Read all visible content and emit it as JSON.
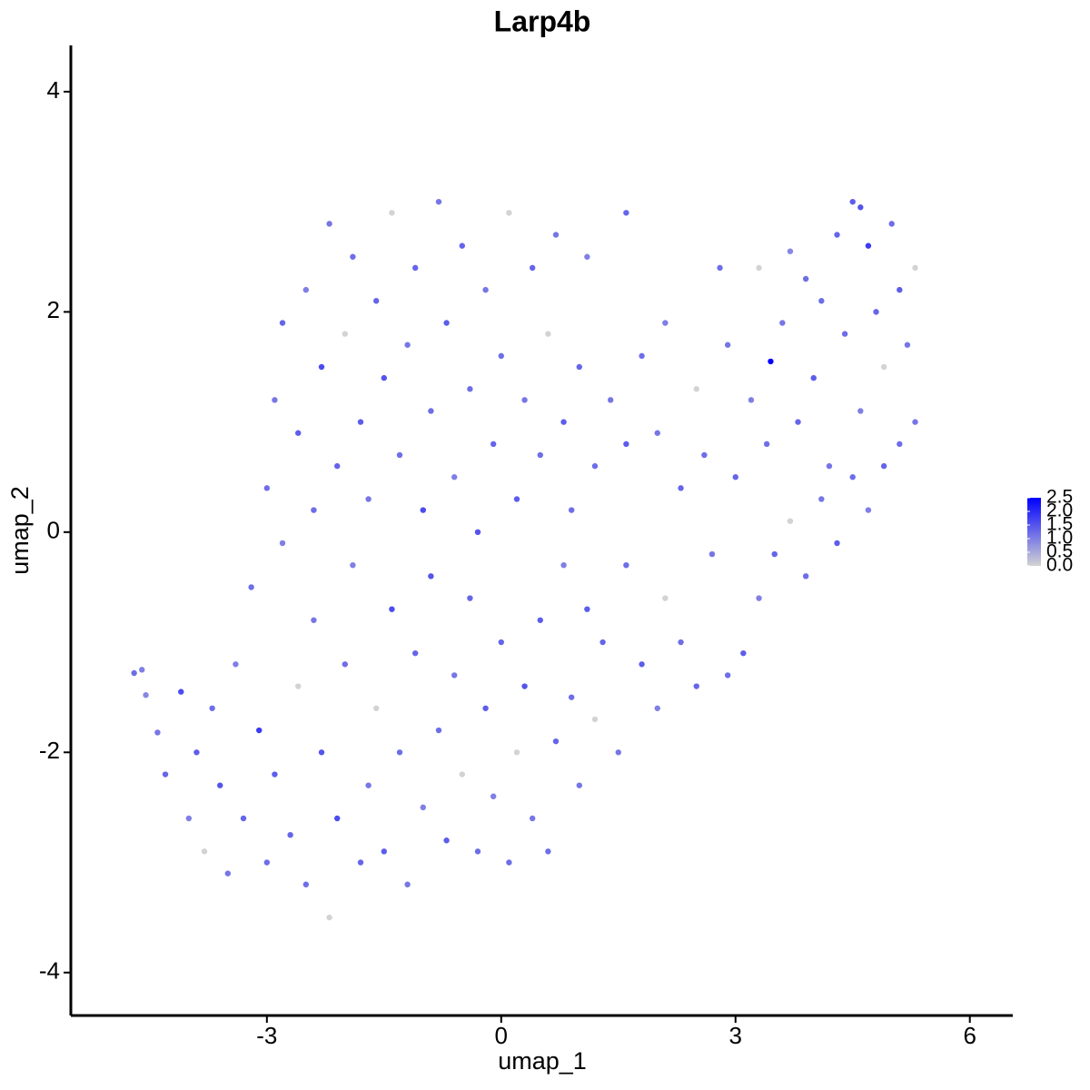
{
  "chart_data": {
    "type": "scatter",
    "title": "Larp4b",
    "x_label": "umap_1",
    "y_label": "umap_2",
    "xlim": [
      -5.51,
      6.55
    ],
    "ylim": [
      -4.39,
      4.42
    ],
    "xticks": [
      -3,
      0,
      3,
      6
    ],
    "yticks": [
      -4,
      -2,
      0,
      2,
      4
    ],
    "color_low": "#d3d3d3",
    "color_high": "#0000ff",
    "clim": [
      0,
      2.5
    ],
    "cticks": [
      {
        "value": 0,
        "label": "0.0"
      },
      0.5,
      {
        "value": 1,
        "label": "1.0"
      },
      1.5,
      {
        "value": 2,
        "label": "2.0"
      },
      2.5
    ],
    "x": [
      -4.7,
      -4.6,
      -4.55,
      -4.4,
      -4.3,
      -4.1,
      -4.0,
      -3.9,
      -3.8,
      -3.7,
      -3.6,
      -3.5,
      -3.4,
      -3.3,
      -3.2,
      -3.1,
      -3.0,
      -2.9,
      -2.8,
      -2.7,
      -2.6,
      -2.5,
      -2.4,
      -2.3,
      -2.2,
      -2.1,
      -2.0,
      -1.9,
      -1.8,
      -1.7,
      -1.6,
      -1.5,
      -1.4,
      -1.3,
      -1.2,
      -1.1,
      -1.0,
      -0.9,
      -0.8,
      -0.7,
      -0.6,
      -0.5,
      -0.4,
      -0.3,
      -0.2,
      -0.1,
      0.0,
      0.1,
      0.2,
      0.3,
      0.4,
      0.5,
      0.6,
      0.7,
      0.8,
      0.9,
      1.0,
      1.1,
      1.2,
      1.3,
      1.5,
      1.6,
      1.8,
      2.0,
      2.1,
      2.3,
      2.5,
      2.7,
      2.9,
      3.1,
      3.3,
      3.5,
      3.7,
      3.9,
      4.1,
      4.3,
      4.5,
      4.7,
      4.9,
      5.1,
      5.3,
      -3.0,
      -2.9,
      -2.8,
      -2.6,
      -2.5,
      -2.4,
      -2.3,
      -2.2,
      -2.1,
      -2.0,
      -1.9,
      -1.8,
      -1.7,
      -1.6,
      -1.5,
      -1.4,
      -1.3,
      -1.2,
      -1.1,
      -1.0,
      -0.9,
      -0.8,
      -0.7,
      -0.6,
      -0.5,
      -0.4,
      -0.3,
      -0.2,
      -0.1,
      0.0,
      0.1,
      0.2,
      0.3,
      0.4,
      0.5,
      0.6,
      0.7,
      0.8,
      0.9,
      1.0,
      1.1,
      1.2,
      1.4,
      1.6,
      1.6,
      1.8,
      2.0,
      2.1,
      2.3,
      2.5,
      2.6,
      2.8,
      2.9,
      3.0,
      3.2,
      3.3,
      3.4,
      3.45,
      3.6,
      3.8,
      3.9,
      4.0,
      4.2,
      4.3,
      4.4,
      4.5,
      4.6,
      4.7,
      4.8,
      4.9,
      5.0,
      5.1,
      5.2,
      5.3,
      4.6,
      4.1,
      3.7
    ],
    "y": [
      -1.28,
      -1.25,
      -1.48,
      -1.82,
      -2.2,
      -1.45,
      -2.6,
      -2.0,
      -2.9,
      -1.6,
      -2.3,
      -3.1,
      -1.2,
      -2.6,
      -0.5,
      -1.8,
      -3.0,
      -2.2,
      -0.1,
      -2.75,
      -1.4,
      -3.2,
      -0.8,
      -2.0,
      -3.5,
      -2.6,
      -1.2,
      -0.3,
      -3.0,
      -2.3,
      -1.6,
      -2.9,
      -0.7,
      -2.0,
      -3.2,
      -1.1,
      -2.5,
      -0.4,
      -1.8,
      -2.8,
      -1.3,
      -2.2,
      -0.6,
      -2.9,
      -1.6,
      -2.4,
      -1.0,
      -3.0,
      -2.0,
      -1.4,
      -2.6,
      -0.8,
      -2.9,
      -1.9,
      -0.3,
      -1.5,
      -2.3,
      -0.7,
      -1.7,
      -1.0,
      -2.0,
      -0.3,
      -1.2,
      -1.6,
      -0.6,
      -1.0,
      -1.4,
      -0.2,
      -1.3,
      -1.1,
      -0.6,
      -0.2,
      0.1,
      -0.4,
      0.3,
      -0.1,
      0.5,
      0.2,
      0.6,
      0.8,
      1.0,
      0.4,
      1.2,
      1.9,
      0.9,
      2.2,
      0.2,
      1.5,
      2.8,
      0.6,
      1.8,
      2.5,
      1.0,
      0.3,
      2.1,
      1.4,
      2.9,
      0.7,
      1.7,
      2.4,
      0.2,
      1.1,
      3.0,
      1.9,
      0.5,
      2.6,
      1.3,
      0.0,
      2.2,
      0.8,
      1.6,
      2.9,
      0.3,
      1.2,
      2.4,
      0.7,
      1.8,
      2.7,
      1.0,
      0.2,
      1.5,
      2.5,
      0.6,
      1.2,
      0.8,
      2.9,
      1.6,
      0.9,
      1.9,
      0.4,
      1.3,
      0.7,
      2.4,
      1.7,
      0.5,
      1.2,
      2.4,
      0.8,
      1.55,
      1.9,
      1.0,
      2.3,
      1.4,
      0.6,
      2.7,
      1.8,
      3.0,
      1.1,
      2.6,
      2.0,
      1.5,
      2.8,
      2.2,
      1.7,
      2.4,
      2.95,
      2.1,
      2.55
    ],
    "values": [
      1.2,
      1.0,
      0.9,
      1.1,
      1.3,
      1.6,
      1.0,
      1.4,
      0,
      1.2,
      1.5,
      1.1,
      1.0,
      1.3,
      1.2,
      1.8,
      1.2,
      1.4,
      1.0,
      1.3,
      0,
      1.2,
      1.1,
      1.5,
      0,
      1.6,
      1.2,
      1.0,
      1.3,
      1.1,
      0,
      1.4,
      1.6,
      1.2,
      1.1,
      1.3,
      1.0,
      1.5,
      1.2,
      1.4,
      1.1,
      0,
      1.3,
      1.2,
      1.4,
      1.0,
      1.3,
      1.2,
      0,
      1.5,
      1.1,
      1.4,
      1.2,
      1.3,
      1.0,
      1.2,
      1.1,
      1.4,
      0,
      1.3,
      1.1,
      1.2,
      1.4,
      1.0,
      0,
      1.2,
      1.3,
      1.1,
      1.2,
      1.4,
      1.0,
      1.3,
      0,
      1.2,
      1.1,
      1.4,
      1.2,
      1.0,
      1.3,
      1.2,
      1.1,
      1.2,
      1.1,
      1.3,
      1.4,
      1.0,
      1.2,
      1.6,
      1.1,
      1.3,
      0,
      1.2,
      1.4,
      1.1,
      1.3,
      1.5,
      0,
      1.2,
      1.1,
      1.3,
      1.6,
      1.2,
      1.1,
      1.4,
      1.0,
      1.3,
      1.2,
      1.5,
      1.1,
      1.3,
      1.2,
      0,
      1.4,
      1.1,
      1.3,
      1.2,
      0,
      1.1,
      1.4,
      1.2,
      1.3,
      1.0,
      1.2,
      1.1,
      1.4,
      1.3,
      1.2,
      1.1,
      1.0,
      1.3,
      0,
      1.2,
      1.2,
      1.1,
      1.3,
      1.0,
      0,
      1.2,
      2.5,
      1.1,
      1.3,
      1.2,
      1.4,
      1.1,
      1.3,
      1.2,
      1.4,
      1.0,
      1.8,
      1.3,
      0,
      1.2,
      1.4,
      1.1,
      0,
      1.5,
      1.2,
      0.9
    ]
  }
}
